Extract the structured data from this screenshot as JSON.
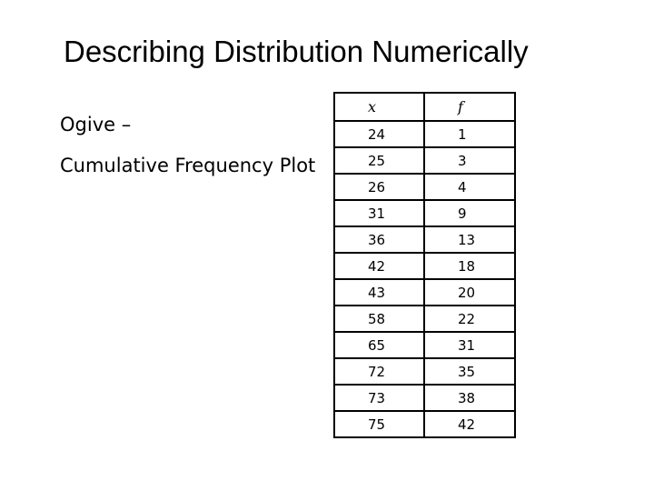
{
  "slide": {
    "title": "Describing Distribution Numerically",
    "ogive_label": "Ogive –",
    "cumulative_label": "Cumulative Frequency Plot"
  },
  "table": {
    "headers": [
      "x",
      "f"
    ],
    "rows": [
      [
        "24",
        "1"
      ],
      [
        "25",
        "3"
      ],
      [
        "26",
        "4"
      ],
      [
        "31",
        "9"
      ],
      [
        "36",
        "13"
      ],
      [
        "42",
        "18"
      ],
      [
        "43",
        "20"
      ],
      [
        "58",
        "22"
      ],
      [
        "65",
        "31"
      ],
      [
        "72",
        "35"
      ],
      [
        "73",
        "38"
      ],
      [
        "75",
        "42"
      ]
    ]
  }
}
